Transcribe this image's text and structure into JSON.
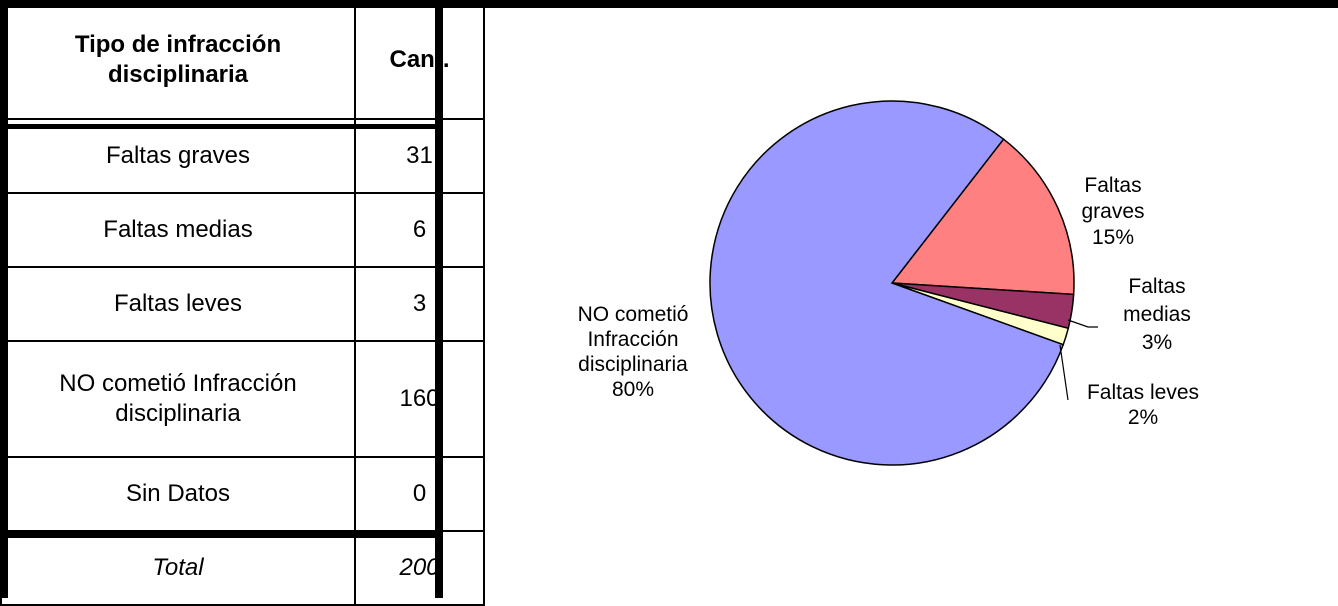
{
  "table": {
    "header": {
      "col1": "Tipo de infracción disciplinaria",
      "col2": "Cant."
    },
    "rows": [
      {
        "label": "Faltas graves",
        "value": "31"
      },
      {
        "label": "Faltas medias",
        "value": "6"
      },
      {
        "label": "Faltas leves",
        "value": "3"
      },
      {
        "label": "NO cometió Infracción disciplinaria",
        "value": "160"
      },
      {
        "label": "Sin Datos",
        "value": "0"
      }
    ],
    "total": {
      "label": "Total",
      "value": "200"
    }
  },
  "chart_data": {
    "type": "pie",
    "slices": [
      {
        "name": "NO cometió Infracción disciplinaria",
        "value": 160,
        "percent": "80%",
        "color": "#9999FF",
        "label_lines": [
          "NO cometió",
          "Infracción",
          "disciplinaria",
          "80%"
        ]
      },
      {
        "name": "Faltas graves",
        "value": 31,
        "percent": "15%",
        "color": "#FF8080",
        "label_lines": [
          "Faltas",
          "graves",
          "15%"
        ]
      },
      {
        "name": "Faltas medias",
        "value": 6,
        "percent": "3%",
        "color": "#993366",
        "label_lines": [
          "Faltas",
          "medias",
          "3%"
        ]
      },
      {
        "name": "Faltas leves",
        "value": 3,
        "percent": "2%",
        "color": "#FFFFCC",
        "label_lines": [
          "Faltas leves",
          "2%"
        ]
      }
    ]
  }
}
